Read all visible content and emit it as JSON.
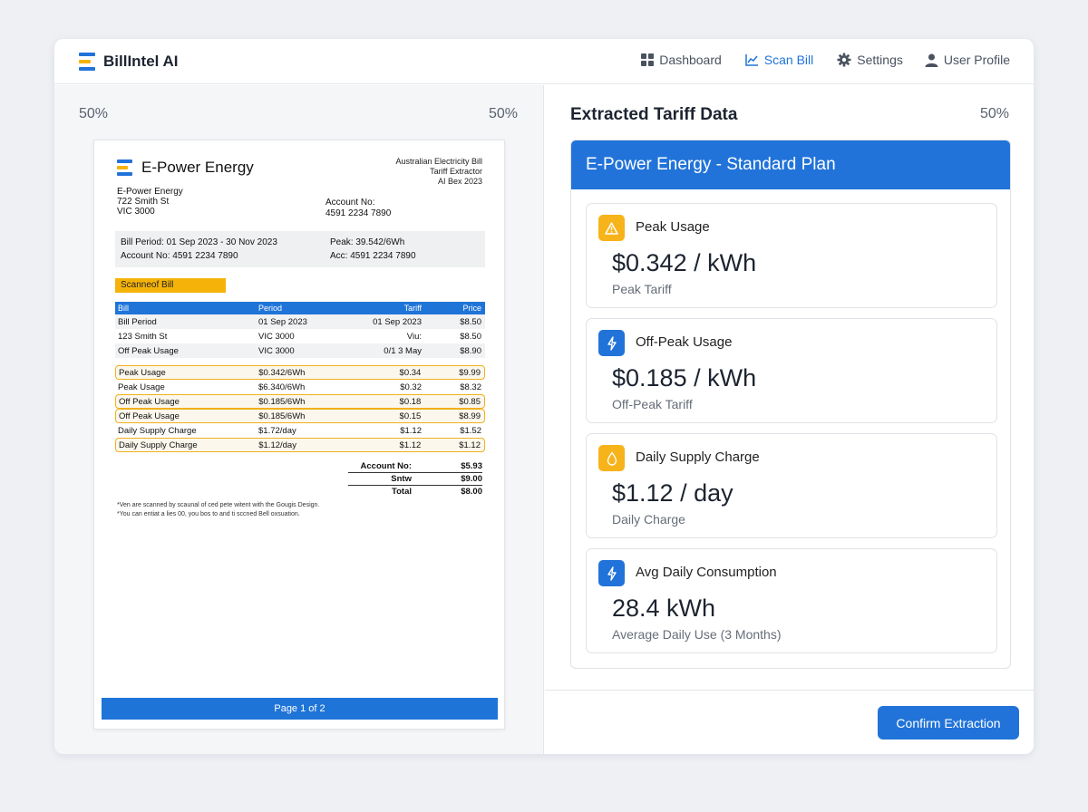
{
  "header": {
    "app_name": "BillIntel AI",
    "nav": [
      {
        "label": "Dashboard",
        "icon": "grid-icon"
      },
      {
        "label": "Scan Bill",
        "icon": "chart-line-icon",
        "active": true
      },
      {
        "label": "Settings",
        "icon": "gear-icon"
      },
      {
        "label": "User Profile",
        "icon": "user-icon"
      }
    ]
  },
  "left": {
    "zoom_left": "50%",
    "zoom_right": "50%",
    "doc": {
      "company": "E-Power Energy",
      "header_right": [
        "Australian Electricity Bill",
        "Tariff Extractor",
        "AI Bex 2023"
      ],
      "address": [
        "E-Power Energy",
        "722 Smith St",
        "VIC 3000"
      ],
      "account_label": "Account No:",
      "account_value": "4591 2234 7890",
      "summary": {
        "period": "Bill Period: 01 Sep 2023 - 30 Nov 2023",
        "account": "Account No: 4591 2234 7890",
        "peak": "Peak: 39.542/6Wh",
        "acc": "Acc:  4591 2234 7890"
      },
      "section_tag": "Scanneof Bill",
      "table": {
        "headers": [
          "Bill",
          "Period",
          "Tariff",
          "Price"
        ],
        "rows_plain": [
          [
            "Bill Period",
            "01 Sep 2023",
            "01 Sep 2023",
            "$8.50"
          ],
          [
            "123 Smith St",
            "VIC 3000",
            "Viu:",
            "$8.50"
          ],
          [
            "Off Peak Usage",
            "VIC 3000",
            "0/1 3 May",
            "$8.90"
          ]
        ],
        "rows_items": [
          [
            "Peak Usage",
            "$0.342/6Wh",
            "$0.34",
            "$9.99"
          ],
          [
            "Peak Usage",
            "$6.340/6Wh",
            "$0.32",
            "$8.32"
          ],
          [
            "Off Peak Usage",
            "$0.185/6Wh",
            "$0.18",
            "$0.85"
          ],
          [
            "Off Peak Usage",
            "$0.185/6Wh",
            "$0.15",
            "$8.99"
          ],
          [
            "Daily Supply Charge",
            "$1.72/day",
            "$1.12",
            "$1.52"
          ],
          [
            "Daily Supply Charge",
            "$1.12/day",
            "$1.12",
            "$1.12"
          ]
        ]
      },
      "totals": [
        [
          "Account No:",
          "$5.93"
        ],
        [
          "Sntw",
          "$9.00"
        ],
        [
          "Total",
          "$8.00"
        ]
      ],
      "notes": [
        "*Ven are scanned by scaunal of ced pete witent with the Gougis Design.",
        "*You can entiat a lies 00, you bos to and ti sccned Bell oxsuation."
      ],
      "footer": "Page 1 of 2"
    }
  },
  "right": {
    "title": "Extracted Tariff Data",
    "zoom": "50%",
    "plan": "E-Power Energy - Standard Plan",
    "cards": [
      {
        "title": "Peak Usage",
        "value": "$0.342 / kWh",
        "sub": "Peak Tariff",
        "icon": "warning-icon",
        "color": "#f7b31a"
      },
      {
        "title": "Off-Peak Usage",
        "value": "$0.185 / kWh",
        "sub": "Off-Peak Tariff",
        "icon": "bolt-icon",
        "color": "#2173d9"
      },
      {
        "title": "Daily Supply Charge",
        "value": "$1.12 / day",
        "sub": "Daily Charge",
        "icon": "drop-icon",
        "color": "#f7b31a"
      },
      {
        "title": "Avg Daily Consumption",
        "value": "28.4 kWh",
        "sub": "Average Daily Use (3 Months)",
        "icon": "bolt-icon",
        "color": "#2173d9"
      }
    ],
    "confirm_label": "Confirm Extraction"
  }
}
